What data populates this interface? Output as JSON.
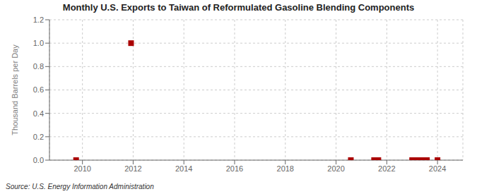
{
  "chart_data": {
    "type": "scatter",
    "title": "Monthly U.S. Exports to Taiwan of Reformulated Gasoline Blending Components",
    "y_label": "Thousand Barrels per Day",
    "annotations": [
      "Source: U.S. Energy Information Administration"
    ],
    "x": [
      2009.75,
      2011.917,
      2020.583,
      2021.5,
      2021.667,
      2023.0,
      2023.167,
      2023.333,
      2023.5,
      2023.583,
      2024.0
    ],
    "values": [
      0.0,
      1.0,
      0.0,
      0.0,
      0.0,
      0.0,
      0.0,
      0.0,
      0.0,
      0.0,
      0.0
    ],
    "color": "#aa0000",
    "marker": "square",
    "xlim": [
      2008.7,
      2025.0
    ],
    "xticks": [
      2010,
      2012,
      2014,
      2016,
      2018,
      2020,
      2022,
      2024
    ],
    "ylim": [
      0.0,
      1.2
    ],
    "yticks": [
      {
        "value": 0.0,
        "label": "0.0"
      },
      0.2,
      0.4,
      0.6,
      0.8,
      {
        "value": 1.0,
        "label": "1.0"
      },
      1.2
    ],
    "grid": true
  }
}
